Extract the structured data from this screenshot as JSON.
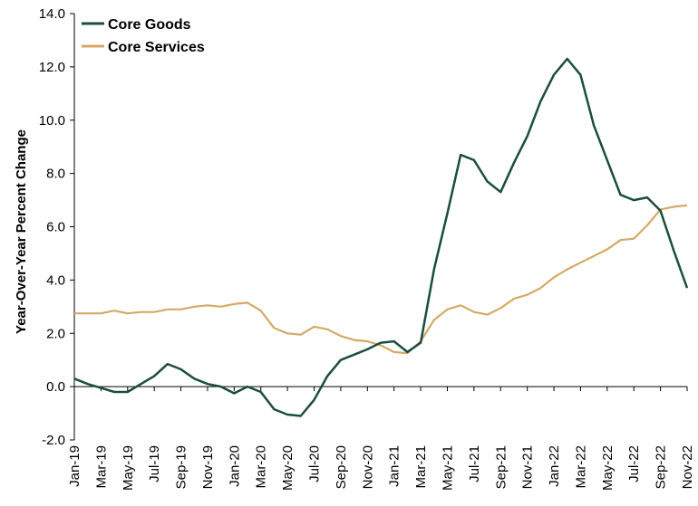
{
  "chart_data": {
    "type": "line",
    "title": "",
    "xlabel": "",
    "ylabel": "Year-Over-Year Percent Change",
    "ylim": [
      -2.0,
      14.0
    ],
    "yticks": [
      "-2.0",
      "0.0",
      "2.0",
      "4.0",
      "6.0",
      "8.0",
      "10.0",
      "12.0",
      "14.0"
    ],
    "grid": false,
    "legend_position": "top-left",
    "x": [
      "Jan-19",
      "Feb-19",
      "Mar-19",
      "Apr-19",
      "May-19",
      "Jun-19",
      "Jul-19",
      "Aug-19",
      "Sep-19",
      "Oct-19",
      "Nov-19",
      "Dec-19",
      "Jan-20",
      "Feb-20",
      "Mar-20",
      "Apr-20",
      "May-20",
      "Jun-20",
      "Jul-20",
      "Aug-20",
      "Sep-20",
      "Oct-20",
      "Nov-20",
      "Dec-20",
      "Jan-21",
      "Feb-21",
      "Mar-21",
      "Apr-21",
      "May-21",
      "Jun-21",
      "Jul-21",
      "Aug-21",
      "Sep-21",
      "Oct-21",
      "Nov-21",
      "Dec-21",
      "Jan-22",
      "Feb-22",
      "Mar-22",
      "Apr-22",
      "May-22",
      "Jun-22",
      "Jul-22",
      "Aug-22",
      "Sep-22",
      "Oct-22",
      "Nov-22"
    ],
    "xtick_labels": [
      "Jan-19",
      "Mar-19",
      "May-19",
      "Jul-19",
      "Sep-19",
      "Nov-19",
      "Jan-20",
      "Mar-20",
      "May-20",
      "Jul-20",
      "Sep-20",
      "Nov-20",
      "Jan-21",
      "Mar-21",
      "May-21",
      "Jul-21",
      "Sep-21",
      "Nov-21",
      "Jan-22",
      "Mar-22",
      "May-22",
      "Jul-22",
      "Sep-22",
      "Nov-22"
    ],
    "series": [
      {
        "name": "Core Goods",
        "color": "#1b4d3e",
        "values": [
          0.3,
          0.1,
          -0.05,
          -0.2,
          -0.2,
          0.1,
          0.4,
          0.85,
          0.65,
          0.3,
          0.1,
          0.0,
          -0.25,
          0.0,
          -0.2,
          -0.85,
          -1.05,
          -1.1,
          -0.5,
          0.4,
          1.0,
          1.2,
          1.4,
          1.65,
          1.7,
          1.3,
          1.65,
          4.4,
          6.5,
          8.7,
          8.5,
          7.7,
          7.3,
          8.4,
          9.4,
          10.7,
          11.7,
          12.3,
          11.7,
          9.8,
          8.5,
          7.2,
          7.0,
          7.1,
          6.6,
          5.1,
          3.7
        ]
      },
      {
        "name": "Core Services",
        "color": "#d4a967",
        "values": [
          2.75,
          2.75,
          2.75,
          2.85,
          2.75,
          2.8,
          2.8,
          2.9,
          2.9,
          3.0,
          3.05,
          3.0,
          3.1,
          3.15,
          2.85,
          2.2,
          2.0,
          1.95,
          2.25,
          2.15,
          1.9,
          1.75,
          1.7,
          1.55,
          1.3,
          1.25,
          1.7,
          2.5,
          2.9,
          3.05,
          2.8,
          2.7,
          2.95,
          3.3,
          3.45,
          3.7,
          4.1,
          4.4,
          4.65,
          4.9,
          5.15,
          5.5,
          5.55,
          6.05,
          6.65,
          6.75,
          6.8
        ]
      }
    ]
  }
}
